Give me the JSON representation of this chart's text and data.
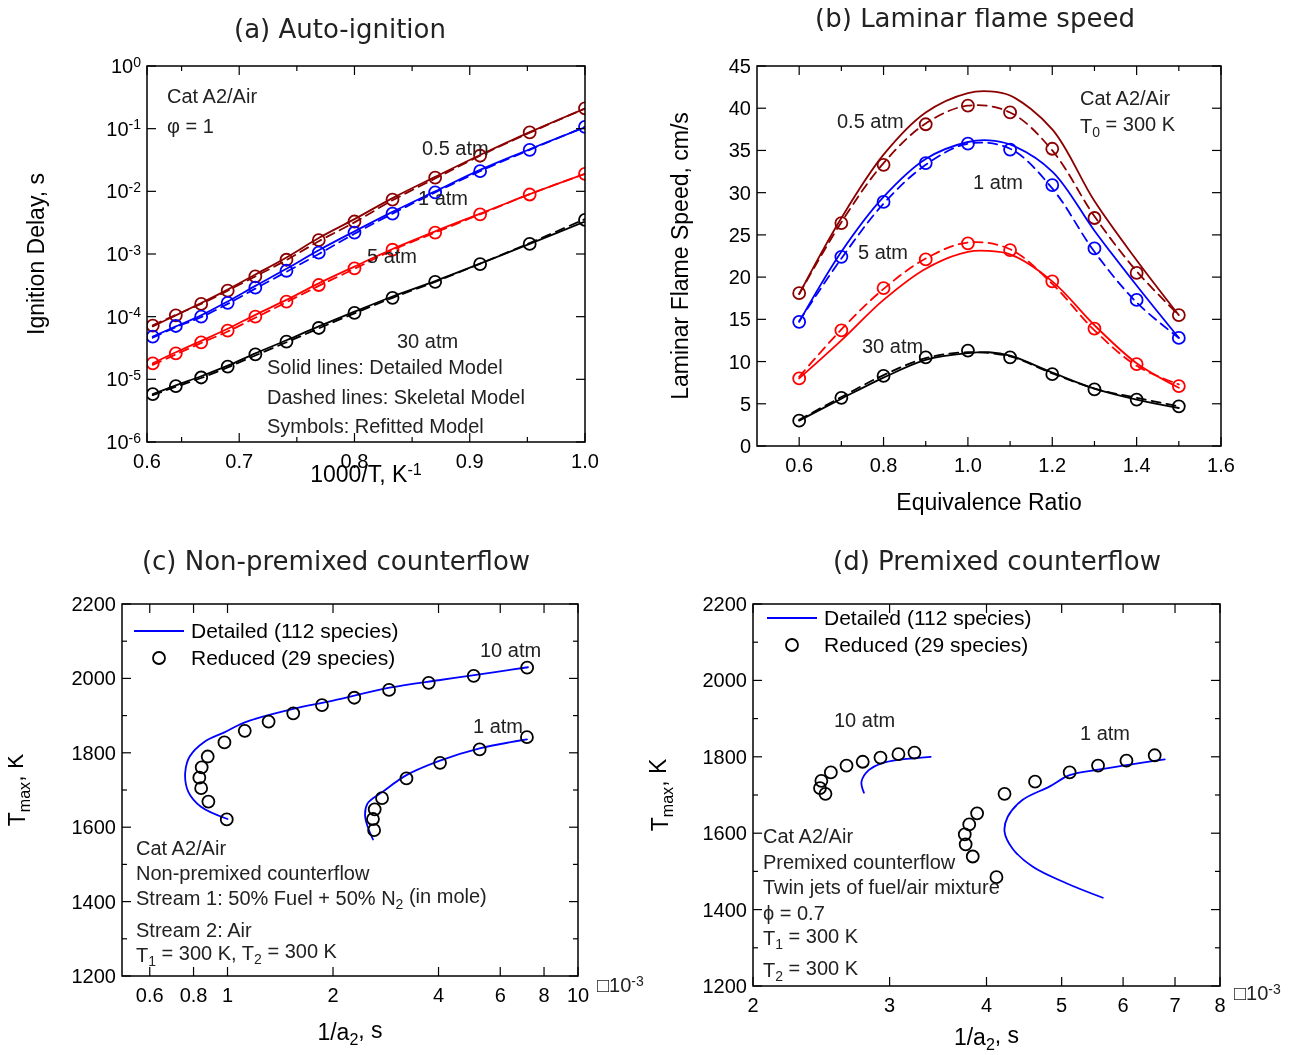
{
  "chart_data": [
    {
      "type": "line",
      "title": "(a) Auto-ignition",
      "xlabel": "1000/T, K$^{-1}$",
      "ylabel": "Ignition Delay, s",
      "log": "y",
      "xlim": [
        0.62,
        1.0
      ],
      "ylim": [
        1e-06,
        1
      ],
      "xticks": [
        {
          "value": 0.62,
          "label": "0.6"
        },
        {
          "value": 0.65,
          "label": null
        },
        0.7,
        {
          "value": 0.75,
          "label": null
        },
        0.8,
        {
          "value": 0.85,
          "label": null
        },
        0.9,
        {
          "value": 0.95,
          "label": null
        },
        {
          "value": 1.0,
          "label": "1.0"
        }
      ],
      "yticks": [
        {
          "value": 1e-06,
          "label": "10$^{-6}$"
        },
        {
          "value": 1e-05,
          "label": "10$^{-5}$"
        },
        {
          "value": 0.0001,
          "label": "10$^{-4}$"
        },
        {
          "value": 0.001,
          "label": "10$^{-3}$"
        },
        {
          "value": 0.01,
          "label": "10$^{-2}$"
        },
        {
          "value": 0.1,
          "label": "10$^{-1}$"
        },
        {
          "value": 1,
          "label": "10$^{0}$"
        }
      ],
      "x": [
        0.625,
        0.645,
        0.667,
        0.69,
        0.714,
        0.741,
        0.769,
        0.8,
        0.833,
        0.87,
        0.909,
        0.952,
        1.0
      ],
      "series": [
        {
          "type": "line",
          "line_style": "solid",
          "color": "#8b0000",
          "values": [
            7e-05,
            0.000105,
            0.000165,
            0.00027,
            0.00047,
            0.00088,
            0.0018,
            0.0036,
            0.0078,
            0.017,
            0.038,
            0.088,
            0.21
          ]
        },
        {
          "type": "line",
          "line_style": "dashed",
          "color": "#8b0000",
          "values": [
            7.3e-05,
            0.000107,
            0.00016,
            0.00026,
            0.00044,
            0.0008,
            0.0016,
            0.0032,
            0.0072,
            0.016,
            0.037,
            0.086,
            0.21
          ]
        },
        {
          "type": "scatter",
          "marker": "circle",
          "color": "#8b0000",
          "values": [
            7.2e-05,
            0.000105,
            0.00016,
            0.00026,
            0.00044,
            0.00081,
            0.00166,
            0.0033,
            0.0074,
            0.0166,
            0.037,
            0.087,
            0.21
          ]
        },
        {
          "type": "line",
          "line_style": "solid",
          "color": "#0000ff",
          "values": [
            4.8e-05,
            7e-05,
            0.000105,
            0.000175,
            0.00031,
            0.00058,
            0.00115,
            0.0023,
            0.0047,
            0.01,
            0.022,
            0.047,
            0.105
          ]
        },
        {
          "type": "line",
          "line_style": "dashed",
          "color": "#0000ff",
          "values": [
            4.6e-05,
            6.8e-05,
            9.8e-05,
            0.00016,
            0.00028,
            0.00052,
            0.001,
            0.0021,
            0.0044,
            0.0096,
            0.021,
            0.046,
            0.107
          ]
        },
        {
          "type": "scatter",
          "marker": "circle",
          "color": "#0000ff",
          "values": [
            4.8e-05,
            7.1e-05,
            0.0001,
            0.000166,
            0.00029,
            0.00054,
            0.00105,
            0.0022,
            0.0044,
            0.0096,
            0.021,
            0.046,
            0.107
          ]
        },
        {
          "type": "line",
          "line_style": "solid",
          "color": "#ff0000",
          "values": [
            1.8e-05,
            2.7e-05,
            4.1e-05,
            6.4e-05,
            0.000107,
            0.000185,
            0.00034,
            0.00063,
            0.0012,
            0.0023,
            0.0044,
            0.009,
            0.019
          ]
        },
        {
          "type": "line",
          "line_style": "dashed",
          "color": "#ff0000",
          "values": [
            1.7e-05,
            2.5e-05,
            3.8e-05,
            5.8e-05,
            9.6e-05,
            0.00017,
            0.00031,
            0.00058,
            0.00115,
            0.0022,
            0.0043,
            0.009,
            0.019
          ]
        },
        {
          "type": "scatter",
          "marker": "circle",
          "color": "#ff0000",
          "values": [
            1.8e-05,
            2.6e-05,
            3.9e-05,
            6e-05,
            0.0001,
            0.000174,
            0.00032,
            0.00059,
            0.00117,
            0.0022,
            0.0043,
            0.0089,
            0.019
          ]
        },
        {
          "type": "line",
          "line_style": "solid",
          "color": "#000000",
          "values": [
            5.8e-06,
            8e-06,
            1.12e-05,
            1.65e-05,
            2.6e-05,
            4.2e-05,
            7e-05,
            0.00012,
            0.00021,
            0.00037,
            0.0007,
            0.00145,
            0.0033
          ]
        },
        {
          "type": "line",
          "line_style": "dashed",
          "color": "#000000",
          "values": [
            5.6e-06,
            7.6e-06,
            1.05e-05,
            1.55e-05,
            2.4e-05,
            3.9e-05,
            6.5e-05,
            0.000113,
            0.0002,
            0.00036,
            0.0007,
            0.0015,
            0.0036
          ]
        },
        {
          "type": "scatter",
          "marker": "circle",
          "color": "#000000",
          "values": [
            5.8e-06,
            7.8e-06,
            1.07e-05,
            1.6e-05,
            2.5e-05,
            4e-05,
            6.6e-05,
            0.000115,
            0.0002,
            0.00036,
            0.00069,
            0.00145,
            0.0035
          ]
        }
      ],
      "annotations": [
        "Cat A2/Air",
        "φ = 1",
        "Solid lines: Detailed Model",
        "Dashed lines: Skeletal Model",
        "Symbols: Refitted Model",
        "0.5 atm",
        "1 atm",
        "5 atm",
        "30 atm"
      ]
    },
    {
      "type": "line",
      "title": "(b) Laminar flame speed",
      "xlabel": "Equivalence Ratio",
      "ylabel": "Laminar Flame Speed, cm/s",
      "xlim": [
        0.5,
        1.6
      ],
      "ylim": [
        0,
        45
      ],
      "xticks": [
        0.6,
        {
          "value": 0.7,
          "label": null
        },
        0.8,
        {
          "value": 0.9,
          "label": null
        },
        {
          "value": 1.0,
          "label": "1.0"
        },
        {
          "value": 1.1,
          "label": null
        },
        1.2,
        {
          "value": 1.3,
          "label": null
        },
        1.4,
        {
          "value": 1.5,
          "label": null
        },
        1.6
      ],
      "yticks": [
        0,
        5,
        10,
        15,
        20,
        25,
        30,
        35,
        40,
        45
      ],
      "x": [
        0.6,
        0.7,
        0.8,
        0.9,
        1.0,
        1.1,
        1.2,
        1.3,
        1.4,
        1.5
      ],
      "series": [
        {
          "type": "line",
          "line_style": "solid",
          "color": "#8b0000",
          "x": [
            0.6,
            0.7,
            0.8,
            0.9,
            1.0,
            1.05,
            1.1,
            1.2,
            1.3,
            1.4,
            1.5
          ],
          "values": [
            18,
            27,
            34.5,
            39.5,
            41.8,
            42,
            41.5,
            37.5,
            29,
            22,
            15.5
          ]
        },
        {
          "type": "line",
          "line_style": "dashed",
          "color": "#8b0000",
          "values": [
            18,
            26.5,
            33.5,
            38.2,
            40.3,
            39.5,
            35,
            27.2,
            20.7,
            15.5
          ]
        },
        {
          "type": "scatter",
          "marker": "circle",
          "color": "#8b0000",
          "values": [
            18.1,
            26.4,
            33.3,
            38.1,
            40.3,
            39.5,
            35.2,
            27,
            20.5,
            15.5
          ]
        },
        {
          "type": "line",
          "line_style": "solid",
          "color": "#0000ff",
          "x": [
            0.6,
            0.7,
            0.8,
            0.9,
            1.0,
            1.05,
            1.1,
            1.2,
            1.3,
            1.4,
            1.5
          ],
          "values": [
            14.7,
            23,
            29.5,
            34,
            36,
            36.2,
            35.7,
            32.5,
            25.5,
            19,
            12.8
          ]
        },
        {
          "type": "line",
          "line_style": "dashed",
          "color": "#0000ff",
          "values": [
            14.8,
            22.2,
            28.7,
            33.3,
            35.8,
            35.2,
            30.5,
            23,
            17,
            12.8
          ]
        },
        {
          "type": "scatter",
          "marker": "circle",
          "color": "#0000ff",
          "values": [
            14.7,
            22.4,
            28.9,
            33.5,
            35.8,
            35.1,
            30.9,
            23.4,
            17.3,
            12.8
          ]
        },
        {
          "type": "line",
          "line_style": "solid",
          "color": "#ff0000",
          "x": [
            0.6,
            0.7,
            0.8,
            0.9,
            1.0,
            1.05,
            1.1,
            1.2,
            1.3,
            1.4,
            1.5
          ],
          "values": [
            8,
            12.5,
            17.3,
            21,
            23,
            23.1,
            22.7,
            19.5,
            14.3,
            9.8,
            6.9
          ]
        },
        {
          "type": "line",
          "line_style": "dashed",
          "color": "#ff0000",
          "values": [
            8.2,
            13.8,
            18.6,
            22.2,
            24.1,
            23.3,
            19.2,
            13.7,
            9.5,
            7.3
          ]
        },
        {
          "type": "scatter",
          "marker": "circle",
          "color": "#ff0000",
          "values": [
            8,
            13.7,
            18.7,
            22.1,
            24,
            23.2,
            19.5,
            13.9,
            9.7,
            7.1
          ]
        },
        {
          "type": "line",
          "line_style": "solid",
          "color": "#000000",
          "x": [
            0.6,
            0.7,
            0.8,
            0.9,
            1.0,
            1.05,
            1.1,
            1.2,
            1.3,
            1.4,
            1.5
          ],
          "values": [
            3,
            5.6,
            8.1,
            10.2,
            11,
            11.1,
            10.7,
            8.7,
            6.8,
            5.5,
            4.5
          ]
        },
        {
          "type": "line",
          "line_style": "dashed",
          "color": "#000000",
          "values": [
            3.1,
            5.8,
            8.4,
            10.4,
            11.1,
            10.6,
            8.6,
            6.8,
            5.7,
            4.7
          ]
        },
        {
          "type": "scatter",
          "marker": "circle",
          "color": "#000000",
          "values": [
            3,
            5.7,
            8.3,
            10.5,
            11.3,
            10.5,
            8.5,
            6.7,
            5.5,
            4.7
          ]
        }
      ],
      "annotations": [
        "Cat A2/Air",
        "T$_{0}$ = 300 K",
        "0.5 atm",
        "1 atm",
        "5 atm",
        "30 atm"
      ]
    },
    {
      "type": "line",
      "title": "(c) Non-premixed counterflow",
      "xlabel": "1/a$_{2}$, s",
      "ylabel": "T$_{max}$, K",
      "log": "x",
      "legend": "top left",
      "xlim": [
        0.5,
        10
      ],
      "ylim": [
        1200,
        2200
      ],
      "xticks": [
        0.6,
        0.8,
        1,
        2,
        4,
        6,
        8,
        10
      ],
      "yticks": [
        1200,
        {
          "value": 1300,
          "label": null
        },
        1400,
        {
          "value": 1500,
          "label": null
        },
        1600,
        {
          "value": 1700,
          "label": null
        },
        1800,
        {
          "value": 1900,
          "label": null
        },
        2000,
        {
          "value": 2100,
          "label": null
        },
        2200
      ],
      "series": [
        {
          "type": "line",
          "line_style": "solid",
          "name": "Detailed (112 species)",
          "color": "#0000ff",
          "x": [
            1.0,
            0.84,
            0.773,
            0.757,
            0.78,
            0.86,
            0.98,
            1.12,
            1.54,
            2.0,
            2.9,
            4.0,
            5.0,
            7.2
          ],
          "values": [
            1622,
            1655,
            1695,
            1745,
            1790,
            1830,
            1855,
            1882,
            1918,
            1940,
            1975,
            1995,
            2008,
            2030
          ]
        },
        {
          "type": "line",
          "line_style": "solid",
          "color": "#0000ff",
          "x": [
            2.6,
            2.47,
            2.51,
            2.77,
            3.24,
            4.04,
            5.24,
            7.15
          ],
          "values": [
            1567,
            1628,
            1664,
            1695,
            1740,
            1779,
            1812,
            1836
          ]
        },
        {
          "type": "scatter",
          "marker": "circle",
          "name": "Reduced (29 species)",
          "color": "#000000",
          "x": [
            0.995,
            0.882,
            0.841,
            0.831,
            0.844,
            0.878,
            0.98,
            1.12,
            1.31,
            1.54,
            1.86,
            2.3,
            2.89,
            3.75,
            5.04,
            7.16
          ],
          "values": [
            1621,
            1669,
            1705,
            1733,
            1761,
            1790,
            1828,
            1859,
            1884,
            1906,
            1928,
            1948,
            1969,
            1988,
            2007,
            2029
          ]
        },
        {
          "type": "scatter",
          "marker": "circle",
          "color": "#000000",
          "x": [
            2.62,
            2.6,
            2.63,
            2.76,
            3.24,
            4.04,
            5.24,
            7.15
          ],
          "values": [
            1592,
            1622,
            1648,
            1678,
            1731,
            1773,
            1809,
            1842
          ]
        }
      ],
      "annotations": [
        "Cat A2/Air",
        "Non-premixed counterflow",
        "Stream 1: 50% Fuel + 50% N$_{2}$ (in mole)",
        "Stream 2: Air",
        "T$_{1}$ = 300 K, T$_{2}$ = 300 K",
        "□10$^{-3}$",
        "10 atm",
        "1 atm"
      ]
    },
    {
      "type": "line",
      "title": "(d) Premixed counterflow",
      "xlabel": "1/a$_{2}$, s",
      "ylabel": "T$_{max}$, K",
      "log": "x",
      "legend": "top left",
      "xlim": [
        2,
        8
      ],
      "ylim": [
        1200,
        2200
      ],
      "xticks": [
        2,
        3,
        4,
        5,
        6,
        7,
        8
      ],
      "yticks": [
        1200,
        {
          "value": 1300,
          "label": null
        },
        1400,
        {
          "value": 1500,
          "label": null
        },
        1600,
        {
          "value": 1700,
          "label": null
        },
        1800,
        {
          "value": 1900,
          "label": null
        },
        2000,
        {
          "value": 2100,
          "label": null
        },
        2200
      ],
      "series": [
        {
          "type": "line",
          "line_style": "solid",
          "name": "Detailed (112 species)",
          "color": "#0000ff",
          "x": [
            2.78,
            2.76,
            2.82,
            2.93,
            3.11,
            3.39
          ],
          "values": [
            1706,
            1735,
            1765,
            1783,
            1793,
            1800
          ]
        },
        {
          "type": "line",
          "line_style": "solid",
          "color": "#0000ff",
          "x": [
            5.65,
            5.07,
            4.59,
            4.32,
            4.22,
            4.26,
            4.45,
            4.82,
            5.12,
            5.6,
            6.18,
            6.79
          ],
          "values": [
            1431,
            1469,
            1512,
            1560,
            1604,
            1643,
            1687,
            1722,
            1752,
            1767,
            1781,
            1793
          ]
        },
        {
          "type": "scatter",
          "marker": "circle",
          "name": "Reduced (29 species)",
          "color": "#000000",
          "x": [
            2.48,
            2.44,
            2.45,
            2.52,
            2.64,
            2.77,
            2.92,
            3.08,
            3.23
          ],
          "values": [
            1703,
            1718,
            1737,
            1759,
            1777,
            1787,
            1798,
            1807,
            1811
          ]
        },
        {
          "type": "scatter",
          "marker": "circle",
          "color": "#000000",
          "x": [
            4.12,
            3.84,
            3.76,
            3.75,
            3.8,
            3.89,
            4.22,
            4.62,
            5.12,
            5.57,
            6.06,
            6.59
          ],
          "values": [
            1485,
            1539,
            1571,
            1597,
            1623,
            1652,
            1703,
            1735,
            1759,
            1777,
            1790,
            1804
          ]
        }
      ],
      "annotations": [
        "Cat A2/Air",
        "Premixed counterflow",
        "Twin jets of fuel/air mixture",
        "ϕ = 0.7",
        "T$_{1}$ = 300 K",
        "T$_{2}$ = 300 K",
        "□10$^{-3}$",
        "10 atm",
        "1 atm"
      ]
    }
  ]
}
